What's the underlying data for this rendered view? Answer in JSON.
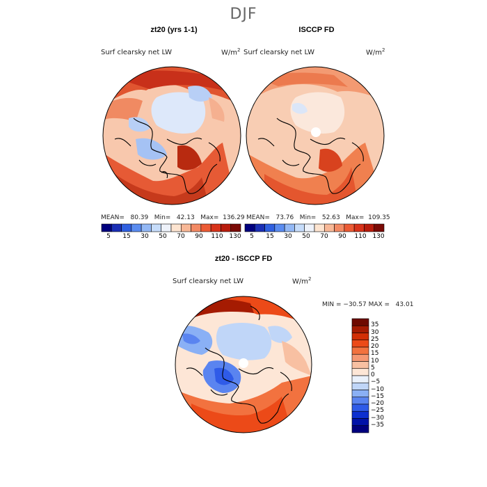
{
  "season": "DJF",
  "panels": [
    {
      "title": "zt20 (yrs 1-1)",
      "variable": "Surf clearsky net LW",
      "units": "W/m",
      "units_exp": "2",
      "stats": "MEAN=   80.39   Min=   42.13   Max=  136.29"
    },
    {
      "title": "ISCCP FD",
      "variable": "Surf clearsky net LW",
      "units": "W/m",
      "units_exp": "2",
      "stats": "MEAN=   73.76   Min=   52.63   Max=  109.35"
    }
  ],
  "diff_panel": {
    "title": "zt20 - ISCCP FD",
    "variable": "Surf clearsky net LW",
    "units": "W/m",
    "units_exp": "2",
    "minmax": "MIN = −30.57 MAX =   43.01"
  },
  "colors": {
    "abs_scale": [
      "#00007e",
      "#1a2fb5",
      "#3060e0",
      "#5a8cf0",
      "#93b8f5",
      "#c6dcfa",
      "#eef2fa",
      "#fde4d0",
      "#f8b897",
      "#f38a64",
      "#ec5b35",
      "#d8331a",
      "#b81c0c",
      "#7a0a05"
    ],
    "diff_scale": [
      "#00007e",
      "#0012a8",
      "#0c2fd0",
      "#2f5be8",
      "#5a84f0",
      "#8ab0f5",
      "#c0d6f8",
      "#eaf1fb",
      "#fde6d6",
      "#f8c0a2",
      "#f59873",
      "#f2723f",
      "#ec4a18",
      "#d12f06",
      "#a51b02",
      "#6e0a00"
    ],
    "land": "#000000"
  },
  "chart_data": [
    {
      "type": "heatmap",
      "title": "zt20 (yrs 1-1)",
      "projection": "north polar stereographic",
      "variable": "Surf clearsky net LW",
      "units": "W/m2",
      "mean": 80.39,
      "min": 42.13,
      "max": 136.29,
      "colorbar_ticks": [
        5,
        15,
        30,
        50,
        70,
        90,
        110,
        130
      ],
      "colorbar_tick_labels": [
        "5",
        "15",
        "30",
        "50",
        "70",
        "90",
        "110",
        "130"
      ]
    },
    {
      "type": "heatmap",
      "title": "ISCCP FD",
      "projection": "north polar stereographic",
      "variable": "Surf clearsky net LW",
      "units": "W/m2",
      "mean": 73.76,
      "min": 52.63,
      "max": 109.35,
      "colorbar_ticks": [
        5,
        15,
        30,
        50,
        70,
        90,
        110,
        130
      ],
      "colorbar_tick_labels": [
        "5",
        "15",
        "30",
        "50",
        "70",
        "90",
        "110",
        "130"
      ]
    },
    {
      "type": "heatmap",
      "title": "zt20 - ISCCP FD",
      "projection": "north polar stereographic",
      "variable": "Surf clearsky net LW",
      "units": "W/m2",
      "min": -30.57,
      "max": 43.01,
      "colorbar_ticks": [
        35,
        30,
        25,
        20,
        15,
        10,
        5,
        0,
        -5,
        -10,
        -15,
        -20,
        -25,
        -30,
        -35
      ],
      "colorbar_tick_labels": [
        "35",
        "30",
        "25",
        "20",
        "15",
        "10",
        "5",
        "0",
        "−5",
        "−10",
        "−15",
        "−20",
        "−25",
        "−30",
        "−35"
      ]
    }
  ]
}
